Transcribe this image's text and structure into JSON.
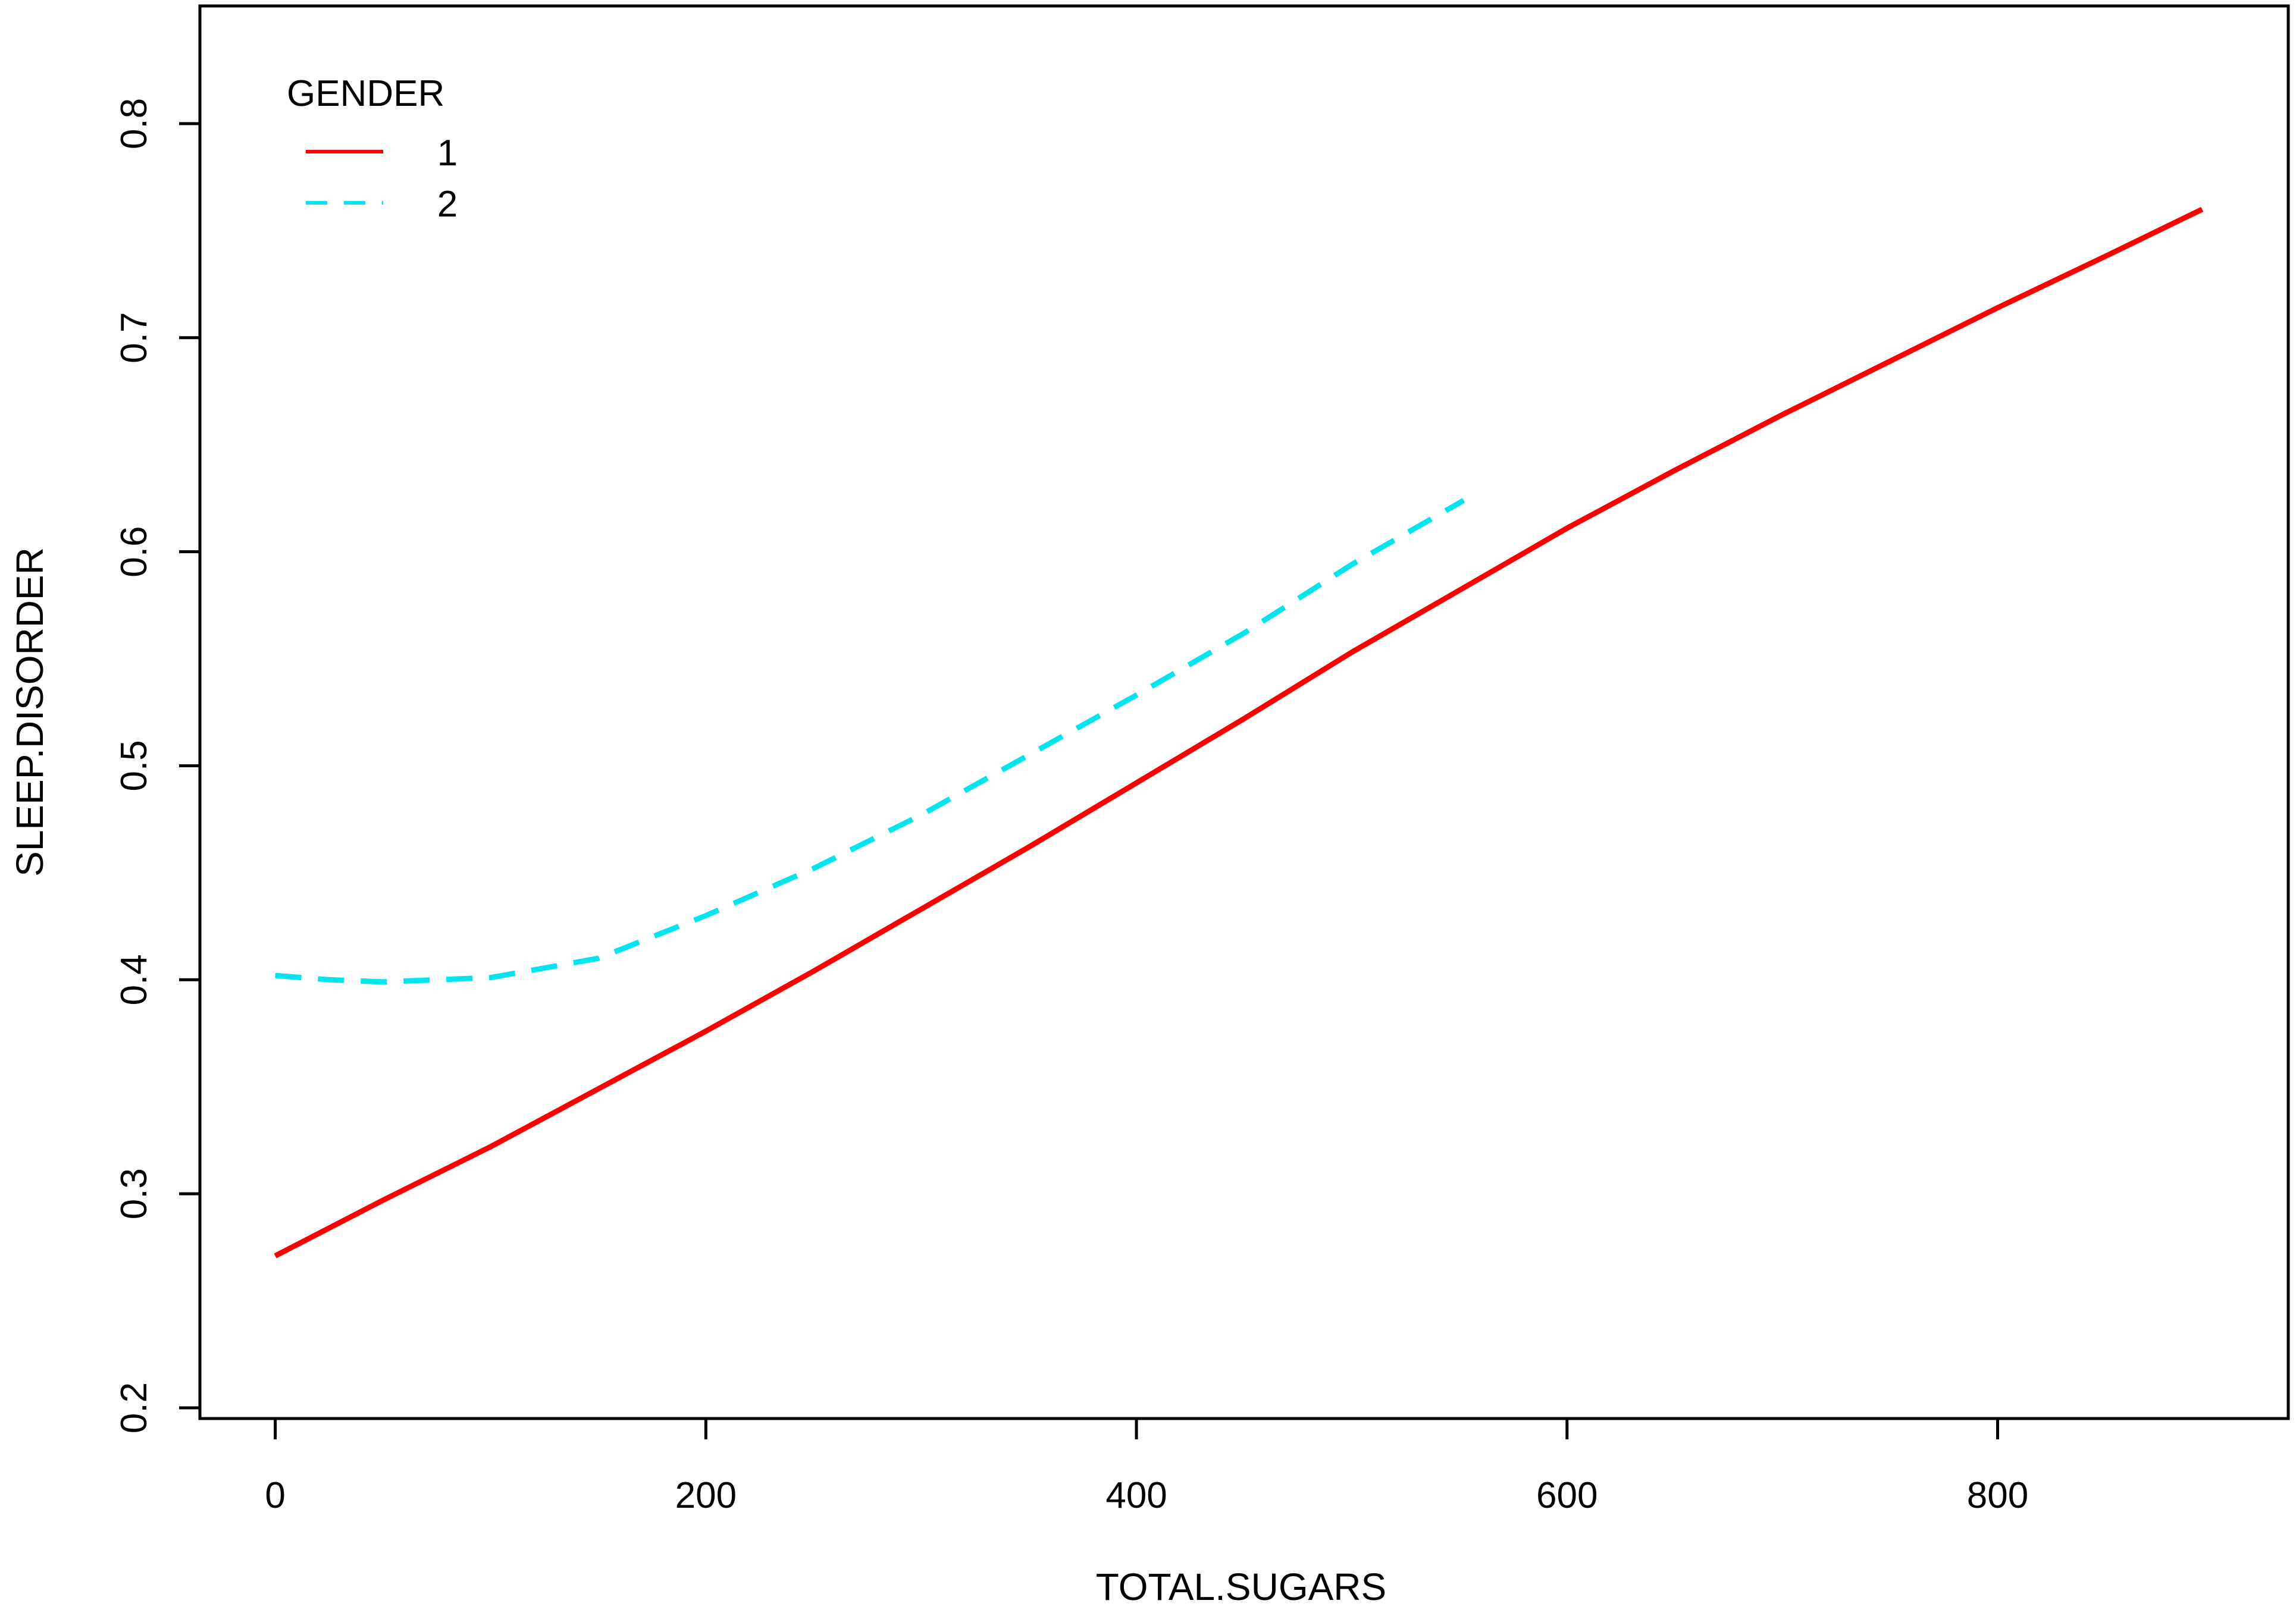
{
  "chart_data": {
    "type": "line",
    "title": "",
    "xlabel": "TOTAL.SUGARS",
    "ylabel": "SLEEP.DISORDER",
    "xlim": [
      -35,
      935
    ],
    "ylim": [
      0.195,
      0.855
    ],
    "xticks": [
      0,
      200,
      400,
      600,
      800
    ],
    "yticks": [
      0.2,
      0.3,
      0.4,
      0.5,
      0.6,
      0.7,
      0.8
    ],
    "grid": false,
    "legend": {
      "title": "GENDER",
      "position": "top-left"
    },
    "series": [
      {
        "name": "1",
        "color": "#ff0000",
        "dash": "solid",
        "x": [
          0,
          50,
          100,
          150,
          200,
          250,
          300,
          350,
          400,
          450,
          500,
          550,
          600,
          650,
          700,
          750,
          800,
          850,
          895
        ],
        "y": [
          0.271,
          0.297,
          0.322,
          0.349,
          0.376,
          0.404,
          0.433,
          0.462,
          0.492,
          0.522,
          0.553,
          0.582,
          0.611,
          0.638,
          0.664,
          0.689,
          0.714,
          0.738,
          0.76
        ]
      },
      {
        "name": "2",
        "color": "#00e5ee",
        "dash": "dashed",
        "x": [
          0,
          25,
          50,
          75,
          100,
          150,
          200,
          250,
          300,
          350,
          400,
          450,
          500,
          552
        ],
        "y": [
          0.402,
          0.4,
          0.399,
          0.4,
          0.401,
          0.41,
          0.43,
          0.452,
          0.477,
          0.505,
          0.533,
          0.562,
          0.594,
          0.624
        ]
      }
    ]
  }
}
